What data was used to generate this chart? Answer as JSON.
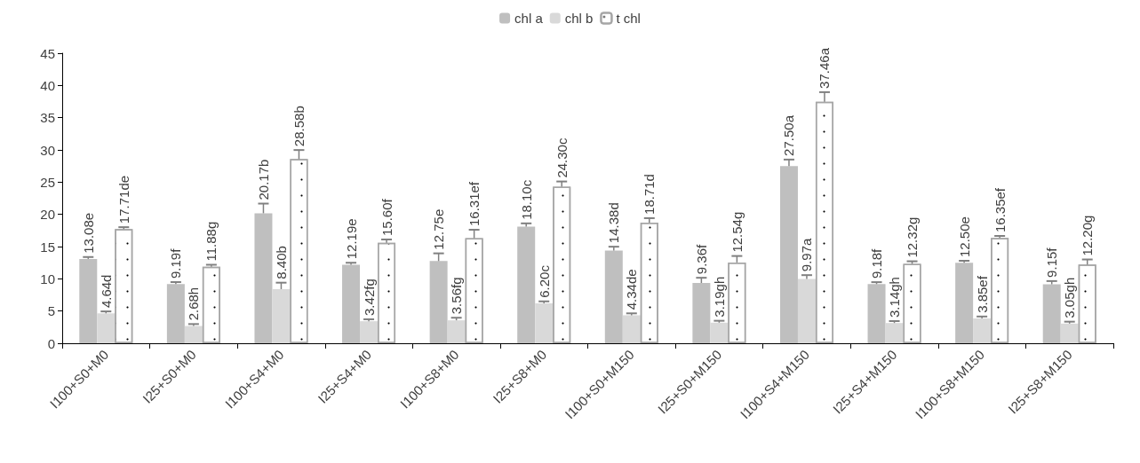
{
  "chart_data": {
    "type": "bar",
    "categories": [
      "I100+S0+M0",
      "I25+S0+M0",
      "I100+S4+M0",
      "I25+S4+M0",
      "I100+S8+M0",
      "I25+S8+M0",
      "I100+S0+M150",
      "I25+S0+M150",
      "I100+S4+M150",
      "I25+S4+M150",
      "I100+S8+M150",
      "I25+S8+M150"
    ],
    "series": [
      {
        "name": "chl a",
        "color": "#bfbfbf",
        "values": [
          13.08,
          9.19,
          20.17,
          12.19,
          12.75,
          18.1,
          14.38,
          9.36,
          27.5,
          9.18,
          12.5,
          9.15
        ],
        "errors": [
          0.3,
          0.3,
          1.5,
          0.3,
          1.2,
          0.5,
          0.6,
          0.8,
          1.0,
          0.3,
          0.3,
          0.5
        ],
        "value_labels": [
          "13.08e",
          "9.19f",
          "20.17b",
          "12.19e",
          "12.75e",
          "18.10c",
          "14.38d",
          "9.36f",
          "27.50a",
          "9.18f",
          "12.50e",
          "9.15f"
        ]
      },
      {
        "name": "chl b",
        "color": "#d9d9d9",
        "values": [
          4.64,
          2.68,
          8.4,
          3.42,
          3.56,
          6.2,
          4.34,
          3.19,
          9.97,
          3.14,
          3.85,
          3.05
        ],
        "errors": [
          0.3,
          0.3,
          1.0,
          0.3,
          0.4,
          0.3,
          0.3,
          0.3,
          0.6,
          0.3,
          0.3,
          0.3
        ],
        "value_labels": [
          "4.64d",
          "2.68h",
          "8.40b",
          "3.42fg",
          "3.56fg",
          "6.20c",
          "4.34de",
          "3.19gh",
          "9.97a",
          "3.14gh",
          "3.85ef",
          "3.05gh"
        ]
      },
      {
        "name": "t chl",
        "color": "#ffffff",
        "values": [
          17.71,
          11.88,
          28.58,
          15.6,
          16.31,
          24.3,
          18.71,
          12.54,
          37.46,
          12.32,
          16.35,
          12.2
        ],
        "errors": [
          0.3,
          0.3,
          1.4,
          0.5,
          1.3,
          0.8,
          0.7,
          1.0,
          1.5,
          0.4,
          0.3,
          0.8
        ],
        "value_labels": [
          "17.71de",
          "11.88g",
          "28.58b",
          "15.60f",
          "16.31ef",
          "24.30c",
          "18.71d",
          "12.54g",
          "37.46a",
          "12.32g",
          "16.35ef",
          "12.20g"
        ]
      }
    ],
    "ylim": [
      0,
      45
    ],
    "yticks": [
      0,
      5,
      10,
      15,
      20,
      25,
      30,
      35,
      40,
      45
    ],
    "grid": false,
    "legend": "top"
  }
}
